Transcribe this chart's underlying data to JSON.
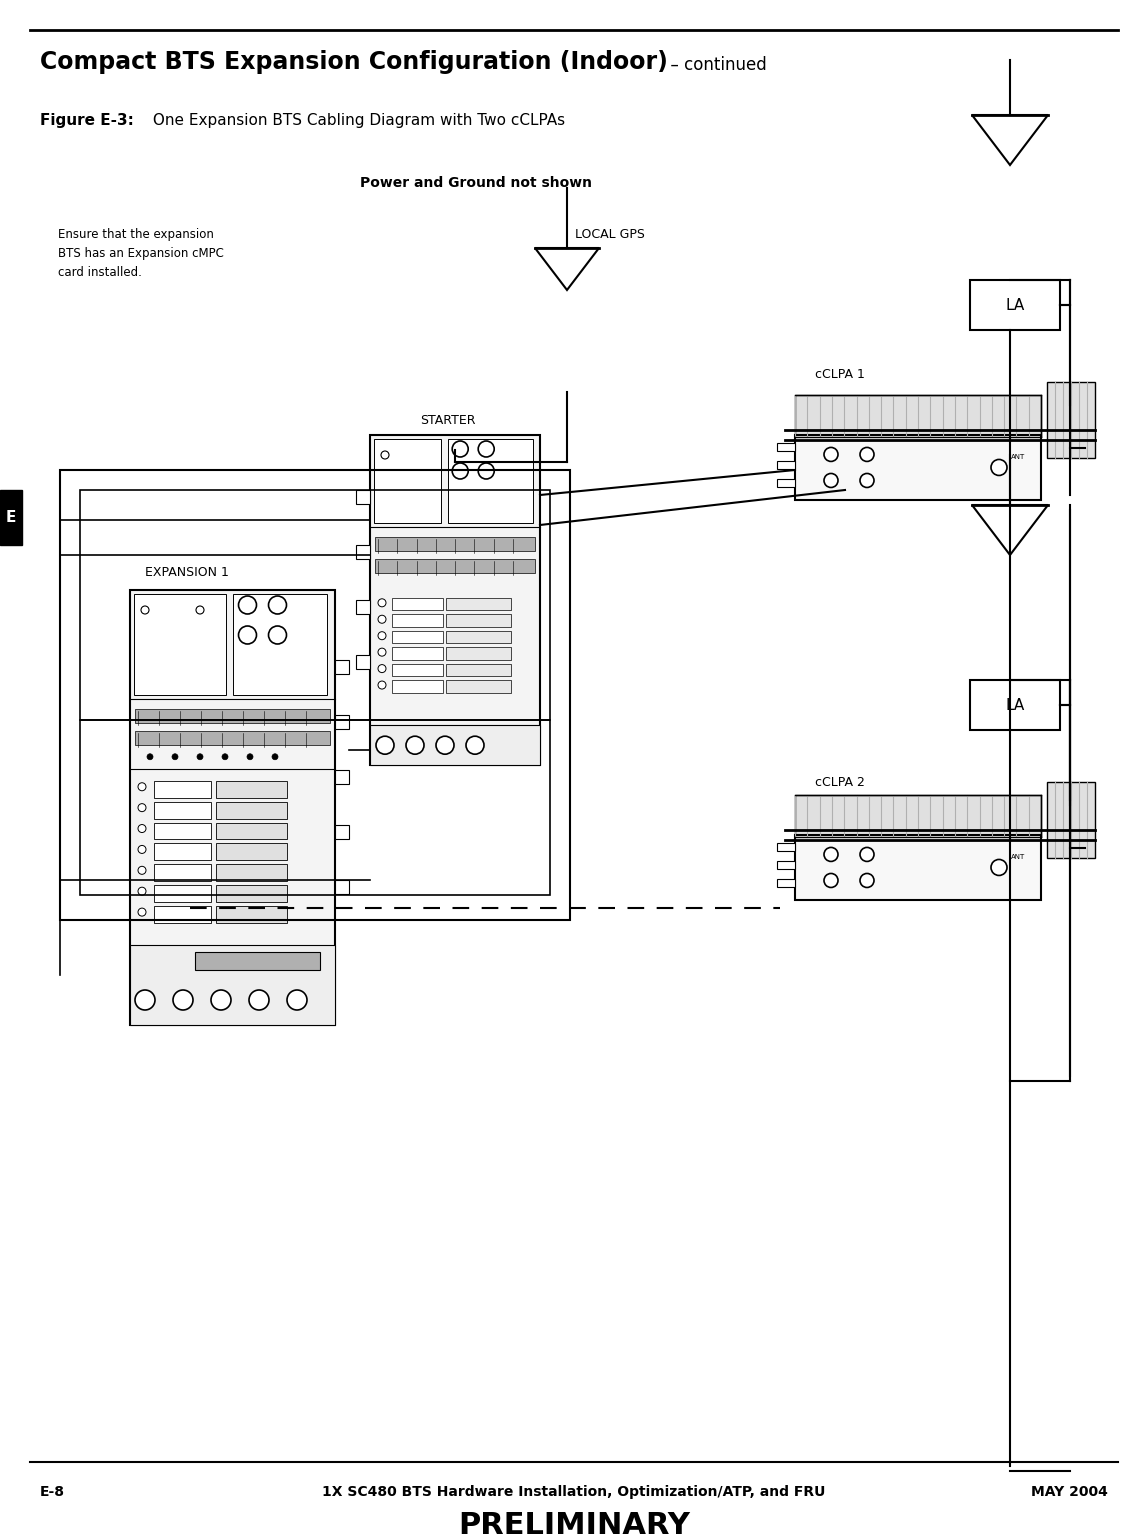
{
  "title_bold": "Compact BTS Expansion Configuration (Indoor)",
  "title_normal": "  – continued",
  "figure_caption_bold": "Figure E-3:",
  "figure_caption_normal": " One Expansion BTS Cabling Diagram with Two cCLPAs",
  "power_note": "Power and Ground not shown",
  "label_local_gps": "LOCAL GPS",
  "label_la1": "LA",
  "label_la2": "LA",
  "label_cclpa1": "cCLPA 1",
  "label_cclpa2": "cCLPA 2",
  "label_starter": "STARTER",
  "label_expansion1": "EXPANSION 1",
  "note_text": "Ensure that the expansion\nBTS has an Expansion cMPC\ncard installed.",
  "footer_left": "E-8",
  "footer_center": "1X SC480 BTS Hardware Installation, Optimization/ATP, and FRU",
  "footer_right": "MAY 2004",
  "footer_bottom": "PRELIMINARY",
  "tab_label": "E",
  "bg_color": "#ffffff",
  "line_color": "#000000",
  "tab_color": "#000000",
  "gray_light": "#e0e0e0",
  "gray_med": "#b0b0b0",
  "gray_dark": "#808080"
}
